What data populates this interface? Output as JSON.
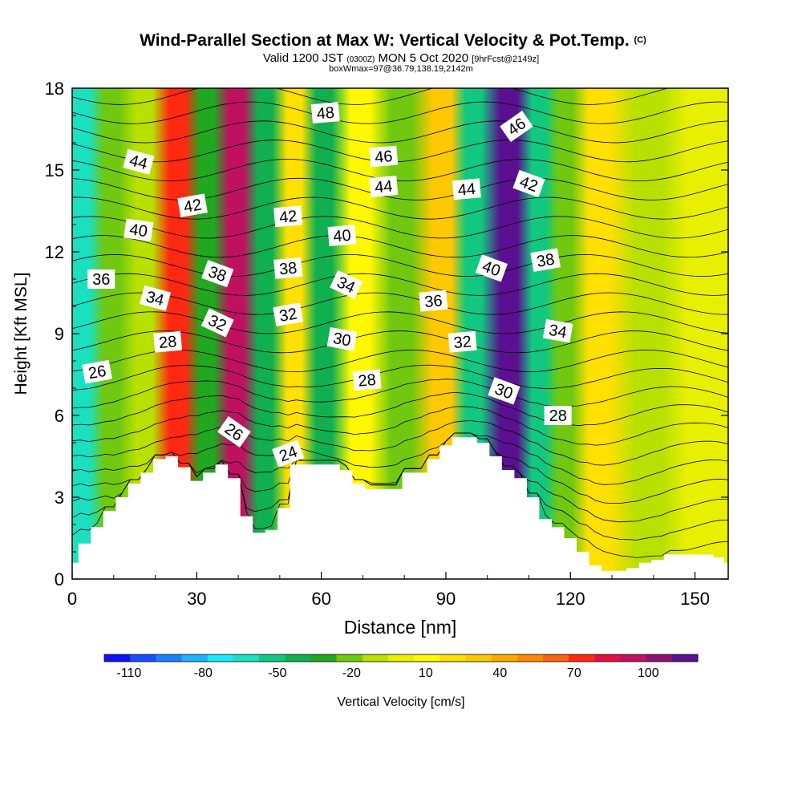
{
  "chart_data": {
    "type": "heatmap",
    "title": "Wind-Parallel Section at Max W: Vertical Velocity & Pot.Temp.",
    "title_mark": "(C)",
    "subtitle_parts": [
      "Valid 1200 JST",
      "(0300Z)",
      "MON 5 Oct 2020",
      "[9hrFcst@2149z]"
    ],
    "subtitle2": "boxWmax=97@36.79,138.19,2142m",
    "xlabel": "Distance [nm]",
    "ylabel": "Height [Kft MSL]",
    "xlim": [
      0,
      158
    ],
    "ylim": [
      0,
      18
    ],
    "xticks": [
      0,
      30,
      60,
      90,
      120,
      150
    ],
    "xtick_labels": [
      "0",
      "30",
      "60",
      "90",
      "120",
      "150"
    ],
    "yticks": [
      0,
      3,
      6,
      9,
      12,
      15,
      18
    ],
    "ytick_labels": [
      "0",
      "3",
      "6",
      "9",
      "12",
      "15",
      "18"
    ],
    "colorbar": {
      "label": "Vertical Velocity [cm/s]",
      "min": -120,
      "max": 120,
      "colors": [
        "#1010ff",
        "#1a4cff",
        "#1a80ff",
        "#1ab4ff",
        "#1ae8ff",
        "#1ae0c0",
        "#12c880",
        "#10b050",
        "#20a820",
        "#70c810",
        "#b8e000",
        "#e8f000",
        "#fff800",
        "#ffe000",
        "#ffc800",
        "#ffa800",
        "#ff8800",
        "#ff6010",
        "#ff2810",
        "#e01040",
        "#c01060",
        "#901070",
        "#5a1090"
      ],
      "tick_values": [
        -110,
        -80,
        -50,
        -20,
        10,
        40,
        70,
        100
      ],
      "tick_labels": [
        "-110",
        "-80",
        "-50",
        "-20",
        "10",
        "40",
        "70",
        "100"
      ]
    },
    "vertical_velocity_bands": [
      {
        "x": 3,
        "w": -60
      },
      {
        "x": 10,
        "w": -25
      },
      {
        "x": 18,
        "w": -15
      },
      {
        "x": 26,
        "w": 75
      },
      {
        "x": 33,
        "w": -35
      },
      {
        "x": 40,
        "w": 95
      },
      {
        "x": 47,
        "w": -40
      },
      {
        "x": 54,
        "w": 25
      },
      {
        "x": 61,
        "w": -40
      },
      {
        "x": 70,
        "w": 15
      },
      {
        "x": 80,
        "w": -25
      },
      {
        "x": 90,
        "w": 30
      },
      {
        "x": 97,
        "w": -55
      },
      {
        "x": 106,
        "w": 110
      },
      {
        "x": 113,
        "w": -55
      },
      {
        "x": 119,
        "w": -20
      },
      {
        "x": 127,
        "w": 25
      },
      {
        "x": 140,
        "w": -10
      },
      {
        "x": 152,
        "w": 5
      }
    ],
    "terrain": {
      "x": [
        0,
        3,
        6,
        9,
        12,
        15,
        18,
        21,
        24,
        27,
        30,
        33,
        36,
        39,
        42,
        45,
        48,
        51,
        54,
        57,
        60,
        63,
        66,
        69,
        72,
        75,
        78,
        81,
        84,
        87,
        90,
        93,
        96,
        99,
        102,
        105,
        108,
        111,
        114,
        117,
        120,
        123,
        126,
        129,
        132,
        135,
        138,
        141,
        144,
        147,
        150,
        153,
        156,
        158
      ],
      "h": [
        0.6,
        1.3,
        1.9,
        2.5,
        3.0,
        3.5,
        3.9,
        4.4,
        4.5,
        4.1,
        3.6,
        3.9,
        4.2,
        3.7,
        2.3,
        1.7,
        1.8,
        2.6,
        4.2,
        4.2,
        4.2,
        4.2,
        4.0,
        3.5,
        3.3,
        3.3,
        3.3,
        3.9,
        3.9,
        4.4,
        4.9,
        5.2,
        5.2,
        5.0,
        4.5,
        4.0,
        3.7,
        3.0,
        2.2,
        1.9,
        1.5,
        1.0,
        0.5,
        0.3,
        0.3,
        0.4,
        0.6,
        0.7,
        0.9,
        0.9,
        0.9,
        0.9,
        0.8,
        0.6
      ]
    },
    "theta_contour_levels": [
      24,
      25,
      26,
      27,
      28,
      29,
      30,
      31,
      32,
      33,
      34,
      35,
      36,
      37,
      38,
      39,
      40,
      41,
      42,
      43,
      44,
      45,
      46,
      47,
      48
    ],
    "contour_labels": [
      {
        "text": "48",
        "x": 61,
        "y": 17.1,
        "angle": -5
      },
      {
        "text": "46",
        "x": 75,
        "y": 15.5,
        "angle": -5
      },
      {
        "text": "46",
        "x": 107,
        "y": 16.6,
        "angle": -35
      },
      {
        "text": "44",
        "x": 16,
        "y": 15.3,
        "angle": 15
      },
      {
        "text": "44",
        "x": 75,
        "y": 14.4,
        "angle": -5
      },
      {
        "text": "44",
        "x": 95,
        "y": 14.3,
        "angle": -5
      },
      {
        "text": "42",
        "x": 29,
        "y": 13.7,
        "angle": -10
      },
      {
        "text": "42",
        "x": 52,
        "y": 13.3,
        "angle": -5
      },
      {
        "text": "42",
        "x": 110,
        "y": 14.5,
        "angle": 20
      },
      {
        "text": "40",
        "x": 16,
        "y": 12.8,
        "angle": 8
      },
      {
        "text": "40",
        "x": 65,
        "y": 12.6,
        "angle": -5
      },
      {
        "text": "40",
        "x": 101,
        "y": 11.4,
        "angle": 20
      },
      {
        "text": "38",
        "x": 35,
        "y": 11.2,
        "angle": 20
      },
      {
        "text": "38",
        "x": 52,
        "y": 11.4,
        "angle": -5
      },
      {
        "text": "38",
        "x": 114,
        "y": 11.7,
        "angle": -10
      },
      {
        "text": "36",
        "x": 7,
        "y": 11.0,
        "angle": 0
      },
      {
        "text": "36",
        "x": 87,
        "y": 10.2,
        "angle": -5
      },
      {
        "text": "34",
        "x": 20,
        "y": 10.3,
        "angle": 15
      },
      {
        "text": "34",
        "x": 66,
        "y": 10.8,
        "angle": 25
      },
      {
        "text": "34",
        "x": 117,
        "y": 9.1,
        "angle": 10
      },
      {
        "text": "32",
        "x": 35,
        "y": 9.4,
        "angle": 25
      },
      {
        "text": "32",
        "x": 52,
        "y": 9.7,
        "angle": -10
      },
      {
        "text": "32",
        "x": 94,
        "y": 8.7,
        "angle": -5
      },
      {
        "text": "30",
        "x": 65,
        "y": 8.8,
        "angle": 10
      },
      {
        "text": "30",
        "x": 104,
        "y": 6.9,
        "angle": 20
      },
      {
        "text": "28",
        "x": 23,
        "y": 8.7,
        "angle": -5
      },
      {
        "text": "28",
        "x": 71,
        "y": 7.3,
        "angle": -5
      },
      {
        "text": "28",
        "x": 117,
        "y": 6.0,
        "angle": 0
      },
      {
        "text": "26",
        "x": 6,
        "y": 7.6,
        "angle": -10
      },
      {
        "text": "26",
        "x": 39,
        "y": 5.4,
        "angle": 35
      },
      {
        "text": "24",
        "x": 52,
        "y": 4.6,
        "angle": -20
      }
    ]
  }
}
